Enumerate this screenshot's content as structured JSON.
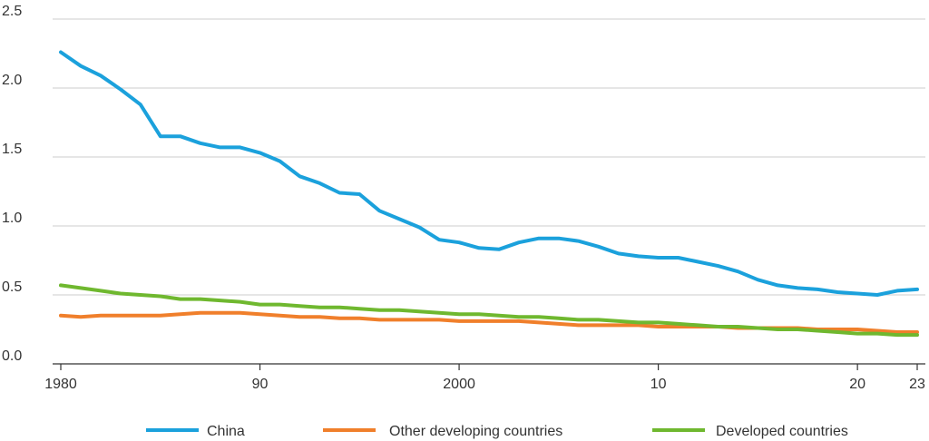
{
  "chart_data": {
    "type": "line",
    "title": "",
    "xlabel": "",
    "ylabel": "",
    "xlim": [
      1980,
      2023
    ],
    "ylim": [
      0,
      2.5
    ],
    "grid": true,
    "legend_position": "bottom",
    "x_tick_values": [
      1980,
      1990,
      2000,
      2010,
      2020,
      2023
    ],
    "x_tick_labels": [
      "1980",
      "90",
      "2000",
      "10",
      "20",
      "23"
    ],
    "y_tick_values": [
      0,
      0.5,
      1.0,
      1.5,
      2.0,
      2.5
    ],
    "y_tick_labels": [
      "0.0",
      "0.5",
      "1.0",
      "1.5",
      "2.0",
      "2.5"
    ],
    "x": [
      1980,
      1981,
      1982,
      1983,
      1984,
      1985,
      1986,
      1987,
      1988,
      1989,
      1990,
      1991,
      1992,
      1993,
      1994,
      1995,
      1996,
      1997,
      1998,
      1999,
      2000,
      2001,
      2002,
      2003,
      2004,
      2005,
      2006,
      2007,
      2008,
      2009,
      2010,
      2011,
      2012,
      2013,
      2014,
      2015,
      2016,
      2017,
      2018,
      2019,
      2020,
      2021,
      2022,
      2023
    ],
    "series": [
      {
        "name": "China",
        "color": "#1ba1dc",
        "values": [
          2.26,
          2.16,
          2.09,
          1.99,
          1.88,
          1.65,
          1.65,
          1.6,
          1.57,
          1.57,
          1.53,
          1.47,
          1.36,
          1.31,
          1.24,
          1.23,
          1.11,
          1.05,
          0.99,
          0.9,
          0.88,
          0.84,
          0.83,
          0.88,
          0.91,
          0.91,
          0.89,
          0.85,
          0.8,
          0.78,
          0.77,
          0.77,
          0.74,
          0.71,
          0.67,
          0.61,
          0.57,
          0.55,
          0.54,
          0.52,
          0.51,
          0.5,
          0.53,
          0.54
        ]
      },
      {
        "name": "Other developing countries",
        "color": "#f07f2b",
        "values": [
          0.35,
          0.34,
          0.35,
          0.35,
          0.35,
          0.35,
          0.36,
          0.37,
          0.37,
          0.37,
          0.36,
          0.35,
          0.34,
          0.34,
          0.33,
          0.33,
          0.32,
          0.32,
          0.32,
          0.32,
          0.31,
          0.31,
          0.31,
          0.31,
          0.3,
          0.29,
          0.28,
          0.28,
          0.28,
          0.28,
          0.27,
          0.27,
          0.27,
          0.27,
          0.26,
          0.26,
          0.26,
          0.26,
          0.25,
          0.25,
          0.25,
          0.24,
          0.23,
          0.23
        ]
      },
      {
        "name": "Developed countries",
        "color": "#6fb82f",
        "values": [
          0.57,
          0.55,
          0.53,
          0.51,
          0.5,
          0.49,
          0.47,
          0.47,
          0.46,
          0.45,
          0.43,
          0.43,
          0.42,
          0.41,
          0.41,
          0.4,
          0.39,
          0.39,
          0.38,
          0.37,
          0.36,
          0.36,
          0.35,
          0.34,
          0.34,
          0.33,
          0.32,
          0.32,
          0.31,
          0.3,
          0.3,
          0.29,
          0.28,
          0.27,
          0.27,
          0.26,
          0.25,
          0.25,
          0.24,
          0.23,
          0.22,
          0.22,
          0.21,
          0.21
        ]
      }
    ]
  }
}
